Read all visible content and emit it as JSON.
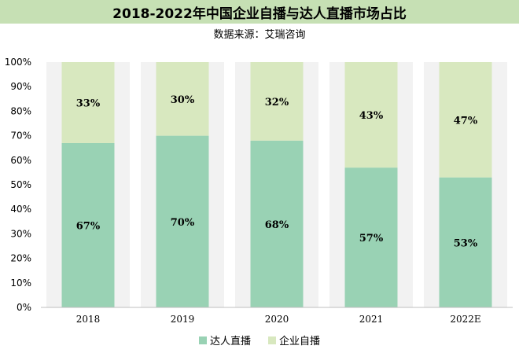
{
  "header": {
    "title": "2018-2022年中国企业自播与达人直播市场占比",
    "source": "数据来源：艾瑞咨询"
  },
  "colors": {
    "title_bg": "#c6e0b4",
    "series_bottom": "#99d2b4",
    "series_top": "#d8e8bf",
    "column_shade": "#f2f2f2"
  },
  "chart_data": {
    "type": "bar",
    "stacked": true,
    "percent": true,
    "categories": [
      "2018",
      "2019",
      "2020",
      "2021",
      "2022E"
    ],
    "series": [
      {
        "name": "达人直播",
        "values": [
          67,
          70,
          68,
          57,
          53
        ],
        "labels": [
          "67%",
          "70%",
          "68%",
          "57%",
          "53%"
        ]
      },
      {
        "name": "企业自播",
        "values": [
          33,
          30,
          32,
          43,
          47
        ],
        "labels": [
          "33%",
          "30%",
          "32%",
          "43%",
          "47%"
        ]
      }
    ],
    "ylim": [
      0,
      100
    ],
    "yticks": [
      "0%",
      "10%",
      "20%",
      "30%",
      "40%",
      "50%",
      "60%",
      "70%",
      "80%",
      "90%",
      "100%"
    ],
    "legend_position": "bottom"
  }
}
